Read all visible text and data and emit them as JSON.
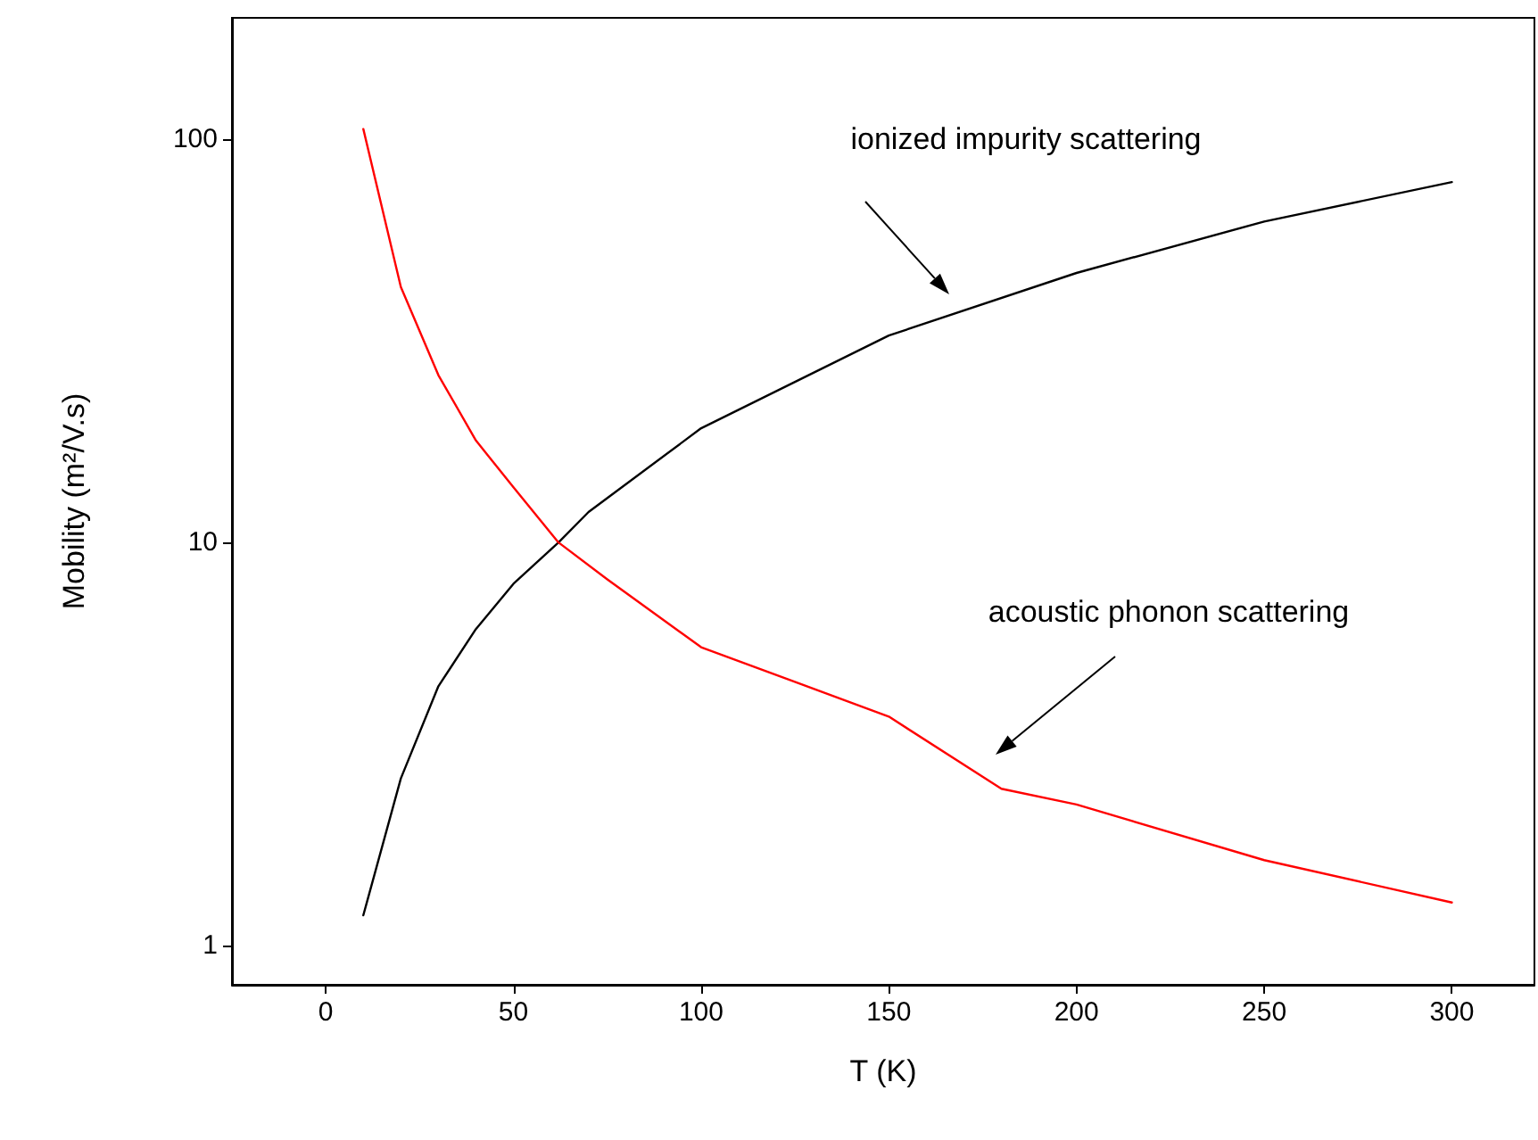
{
  "chart_data": {
    "type": "line",
    "xlabel": "T (K)",
    "ylabel": "Mobility (m²/V.s)",
    "log": "y",
    "marker": "none",
    "line_style": "solid",
    "xlim": [
      -25,
      322
    ],
    "xticks": [
      0,
      50,
      100,
      150,
      200,
      250,
      300
    ],
    "ylim": [
      0.8,
      200
    ],
    "yticks": [
      1,
      10,
      100
    ],
    "series": [
      {
        "color": "#000000",
        "x": [
          10,
          20,
          30,
          40,
          50,
          62,
          70,
          100,
          150,
          200,
          250,
          300
        ],
        "values": [
          1.19,
          2.6,
          4.4,
          6.1,
          7.9,
          10,
          11.9,
          19.2,
          32.6,
          46.6,
          62.5,
          78.3
        ]
      },
      {
        "color": "#ff0000",
        "x": [
          10,
          20,
          30,
          40,
          50,
          62,
          75,
          100,
          150,
          180,
          200,
          250,
          300
        ],
        "values": [
          106,
          43,
          26,
          17.9,
          13.7,
          10,
          8.1,
          5.5,
          3.7,
          2.45,
          2.24,
          1.63,
          1.28
        ]
      }
    ],
    "annotations": [
      "ionized impurity scattering",
      "acoustic phonon scattering"
    ]
  }
}
